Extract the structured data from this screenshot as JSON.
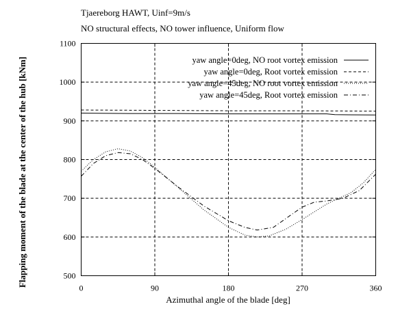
{
  "header": {
    "title": "Tjaereborg HAWT, Uinf=9m/s",
    "subtitle": "NO structural effects, NO tower influence, Uniform flow"
  },
  "chart_data": {
    "type": "line",
    "title": "Tjaereborg HAWT, Uinf=9m/s",
    "subtitle": "NO structural effects, NO tower influence, Uniform flow",
    "xlabel": "Azimuthal angle of the blade [deg]",
    "ylabel": "Flapping moment of the blade at the center of the hub [kNm]",
    "xlim": [
      0,
      360
    ],
    "ylim": [
      500,
      1100
    ],
    "xticks": [
      0,
      90,
      180,
      270,
      360
    ],
    "yticks": [
      500,
      600,
      700,
      800,
      900,
      1000,
      1100
    ],
    "grid": true,
    "legend_position": "top-right",
    "series": [
      {
        "name": "yaw angle=0deg, NO root vortex emission",
        "style": "solid",
        "x": [
          0,
          60,
          120,
          180,
          240,
          300,
          310,
          360
        ],
        "y": [
          920,
          919,
          919,
          918,
          918,
          918,
          916,
          915
        ]
      },
      {
        "name": "yaw angle=0deg, Root vortex emission",
        "style": "dashed",
        "x": [
          0,
          90,
          180,
          270,
          360
        ],
        "y": [
          928,
          927,
          926,
          926,
          925
        ]
      },
      {
        "name": "yaw angle=45deg, NO root vortex emission",
        "style": "dotted",
        "x": [
          0,
          15,
          30,
          45,
          60,
          75,
          90,
          120,
          150,
          180,
          200,
          215,
          230,
          250,
          270,
          300,
          330,
          345,
          360
        ],
        "y": [
          770,
          800,
          820,
          828,
          822,
          805,
          780,
          725,
          670,
          625,
          605,
          600,
          603,
          620,
          645,
          685,
          715,
          740,
          775
        ]
      },
      {
        "name": "yaw angle=45deg, Root vortex emission",
        "style": "dashdot",
        "x": [
          0,
          15,
          30,
          45,
          60,
          75,
          90,
          120,
          150,
          180,
          200,
          215,
          235,
          255,
          270,
          285,
          300,
          320,
          340,
          360
        ],
        "y": [
          757,
          790,
          810,
          818,
          815,
          800,
          777,
          727,
          680,
          642,
          625,
          618,
          625,
          655,
          677,
          690,
          693,
          700,
          720,
          762
        ]
      }
    ]
  }
}
